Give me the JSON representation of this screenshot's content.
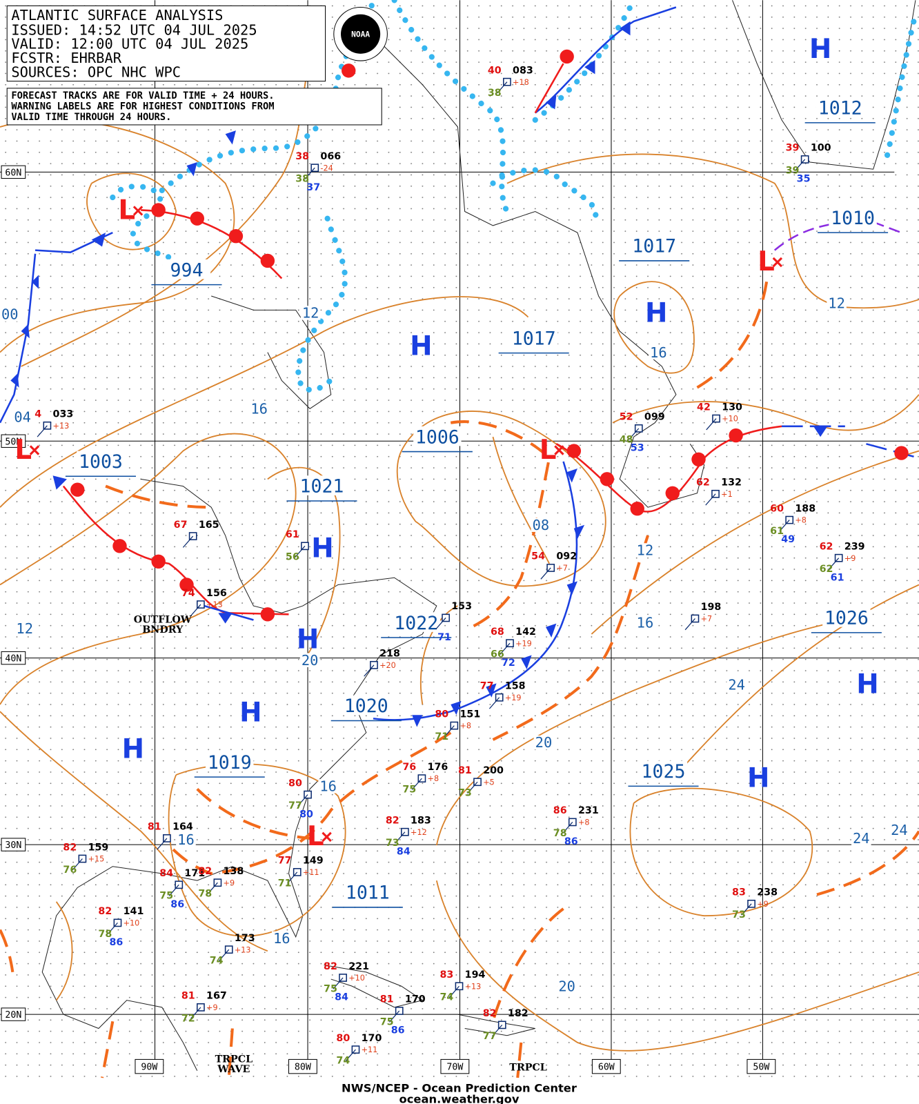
{
  "header": {
    "lines": [
      "ATLANTIC SURFACE ANALYSIS",
      "ISSUED: 14:52 UTC 04 JUL 2025",
      "VALID:  12:00 UTC 04 JUL 2025",
      "FCSTR:  EHRBAR",
      "SOURCES: OPC NHC WPC"
    ],
    "note": [
      "FORECAST TRACKS ARE FOR VALID TIME + 24 HOURS.",
      "WARNING LABELS ARE FOR HIGHEST CONDITIONS FROM",
      "VALID TIME THROUGH 24 HOURS."
    ],
    "logo": "NOAA"
  },
  "grid_labels": {
    "lat": [
      "60N",
      "50N",
      "40N",
      "30N",
      "20N"
    ],
    "lon": [
      "90W",
      "80W",
      "70W",
      "60W",
      "50W"
    ]
  },
  "pressure_labels": [
    "994",
    "1003",
    "1021",
    "1006",
    "1017",
    "1017",
    "1012",
    "1010",
    "1022",
    "1020",
    "1019",
    "1026",
    "1025",
    "1011"
  ],
  "isobar_labels": [
    "00",
    "12",
    "16",
    "04",
    "12",
    "20",
    "16",
    "16",
    "16",
    "08",
    "12",
    "16",
    "24",
    "20",
    "16",
    "12",
    "24",
    "24",
    "20"
  ],
  "centers": [
    "H",
    "H",
    "H",
    "H",
    "H",
    "H",
    "H",
    "H",
    "H",
    "L",
    "L",
    "L",
    "L",
    "L"
  ],
  "stations": [
    {
      "pressure": "083",
      "temp": "40",
      "dew": "38",
      "tendency": "+18"
    },
    {
      "pressure": "066",
      "temp": "38",
      "dew": "38",
      "extra": "37",
      "tendency": "-24"
    },
    {
      "pressure": "100",
      "temp": "39",
      "dew": "39",
      "extra": "35"
    },
    {
      "pressure": "033",
      "temp": "4",
      "tendency": "+13"
    },
    {
      "pressure": "165",
      "temp": "67"
    },
    {
      "pressure": "156",
      "temp": "74",
      "tendency": "+13"
    },
    {
      "temp": "61",
      "dew": "56"
    },
    {
      "pressure": "099",
      "temp": "52",
      "dew": "48",
      "extra": "53"
    },
    {
      "pressure": "130",
      "temp": "42",
      "tendency": "+10"
    },
    {
      "pressure": "132",
      "temp": "62",
      "tendency": "+1"
    },
    {
      "pressure": "188",
      "temp": "60",
      "dew": "61",
      "extra": "49",
      "tendency": "+8"
    },
    {
      "pressure": "239",
      "temp": "62",
      "dew": "62",
      "extra": "61",
      "tendency": "+9"
    },
    {
      "pressure": "092",
      "temp": "54",
      "tendency": "+7"
    },
    {
      "pressure": "153",
      "extra": "71"
    },
    {
      "pressure": "142",
      "temp": "68",
      "dew": "66",
      "extra": "72",
      "tendency": "+19"
    },
    {
      "pressure": "198",
      "tendency": "+7"
    },
    {
      "pressure": "218",
      "tendency": "+20"
    },
    {
      "pressure": "158",
      "temp": "77",
      "tendency": "+19"
    },
    {
      "pressure": "151",
      "temp": "80",
      "dew": "71",
      "tendency": "+8"
    },
    {
      "pressure": "176",
      "temp": "76",
      "dew": "75",
      "tendency": "+8"
    },
    {
      "pressure": "200",
      "temp": "81",
      "dew": "73",
      "tendency": "+5"
    },
    {
      "pressure": "231",
      "temp": "86",
      "dew": "78",
      "extra": "86",
      "tendency": "+8"
    },
    {
      "pressure": "183",
      "temp": "82",
      "dew": "73",
      "extra": "84",
      "tendency": "+12"
    },
    {
      "pressure": "164",
      "temp": "81"
    },
    {
      "pressure": "159",
      "temp": "82",
      "dew": "76",
      "tendency": "+15"
    },
    {
      "pressure": "171",
      "temp": "84",
      "dew": "75",
      "extra": "86"
    },
    {
      "pressure": "138",
      "temp": "82",
      "dew": "78",
      "tendency": "+9"
    },
    {
      "pressure": "149",
      "temp": "77",
      "dew": "71",
      "tendency": "+11"
    },
    {
      "pressure": "141",
      "temp": "82",
      "dew": "78",
      "extra": "86",
      "tendency": "+10"
    },
    {
      "pressure": "173",
      "dew": "74",
      "tendency": "+13"
    },
    {
      "pressure": "221",
      "temp": "82",
      "dew": "75",
      "extra": "84",
      "tendency": "+10"
    },
    {
      "pressure": "194",
      "temp": "83",
      "dew": "74",
      "tendency": "+13"
    },
    {
      "pressure": "170",
      "temp": "81",
      "dew": "75",
      "extra": "86"
    },
    {
      "pressure": "182",
      "temp": "82",
      "dew": "77"
    },
    {
      "pressure": "167",
      "temp": "81",
      "dew": "72",
      "tendency": "+9"
    },
    {
      "pressure": "170",
      "temp": "80",
      "dew": "74",
      "tendency": "+11"
    },
    {
      "pressure": "238",
      "temp": "83",
      "dew": "73",
      "tendency": "+9"
    },
    {
      "temp": "80",
      "dew": "77",
      "extra": "80"
    }
  ],
  "annotations": [
    "OUTFLOW",
    "BNDRY",
    "TRPCL",
    "WAVE",
    "TRPCL"
  ],
  "footer": [
    "NWS/NCEP - Ocean Prediction Center",
    "ocean.weather.gov"
  ]
}
